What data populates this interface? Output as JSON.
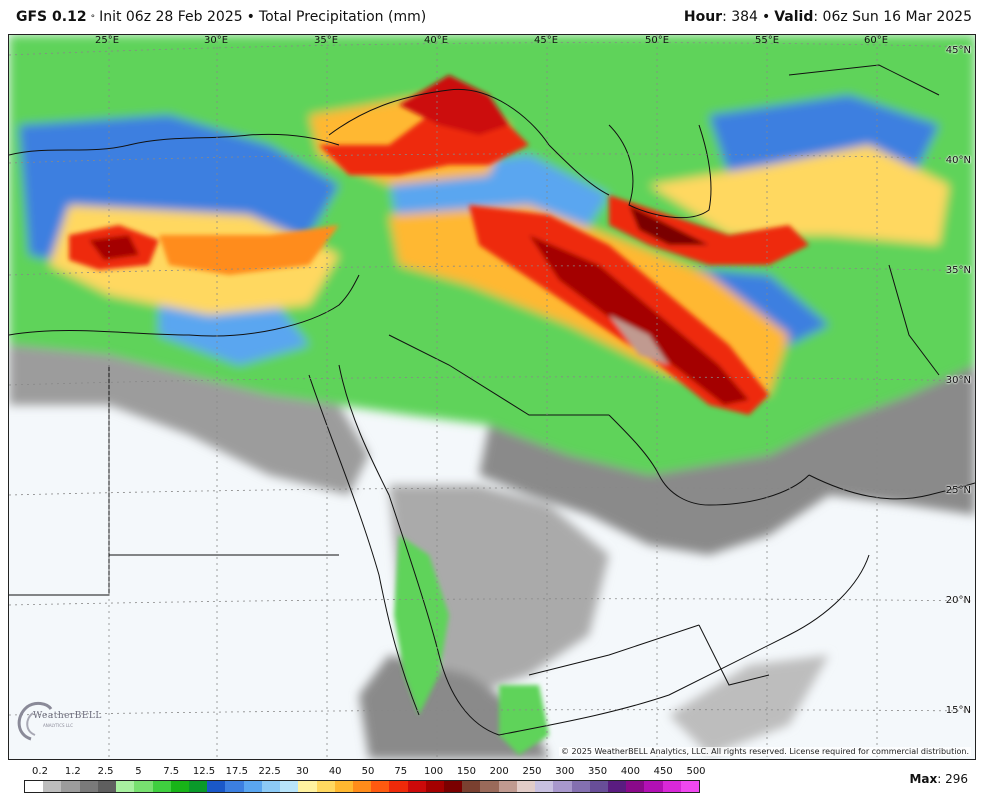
{
  "header": {
    "model": "GFS 0.12",
    "degree": "°",
    "init_text": "Init 06z 28 Feb 2025",
    "separator": "•",
    "product": "Total Precipitation (mm)",
    "hour_label": "Hour",
    "hour_value": ": 384",
    "valid_label": "Valid",
    "valid_value": ": 06z Sun 16 Mar 2025"
  },
  "map": {
    "lon_labels": [
      "25°E",
      "30°E",
      "35°E",
      "40°E",
      "45°E",
      "50°E",
      "55°E",
      "60°E"
    ],
    "lat_labels": [
      "45°N",
      "40°N",
      "35°N",
      "30°N",
      "25°N",
      "20°N",
      "15°N"
    ],
    "copyright": "© 2025 WeatherBELL Analytics, LLC. All rights reserved. License required for commercial distribution.",
    "logo_text": "WeatherBELL",
    "logo_subtext": "ANALYTICS LLC"
  },
  "legend": {
    "labels": [
      "0.2",
      "1.2",
      "2.5",
      "5",
      "7.5",
      "12.5",
      "17.5",
      "22.5",
      "30",
      "40",
      "50",
      "75",
      "100",
      "150",
      "200",
      "250",
      "300",
      "350",
      "400",
      "450",
      "500"
    ],
    "colors": [
      "#ffffff",
      "#bdbdbd",
      "#9c9c9c",
      "#7a7a7a",
      "#5f5f5f",
      "#a8f0a0",
      "#78e070",
      "#3fcf3f",
      "#18b418",
      "#0a9a2a",
      "#1a58c8",
      "#3c7fe0",
      "#5aa6f0",
      "#8ccaf6",
      "#b8e4fa",
      "#fff2a0",
      "#ffd860",
      "#ffb830",
      "#ff8c1a",
      "#ff5a10",
      "#ee2a0a",
      "#cc0a0a",
      "#a40000",
      "#7a0000",
      "#7a4030",
      "#9a6a5a",
      "#c09a90",
      "#e2ccc8",
      "#c8c0e0",
      "#a898cc",
      "#8470b0",
      "#684e98",
      "#5a1c80",
      "#8a0a8a",
      "#b210b4",
      "#d828d8",
      "#f048f0"
    ],
    "max_label": "Max",
    "max_value": ": 296"
  }
}
